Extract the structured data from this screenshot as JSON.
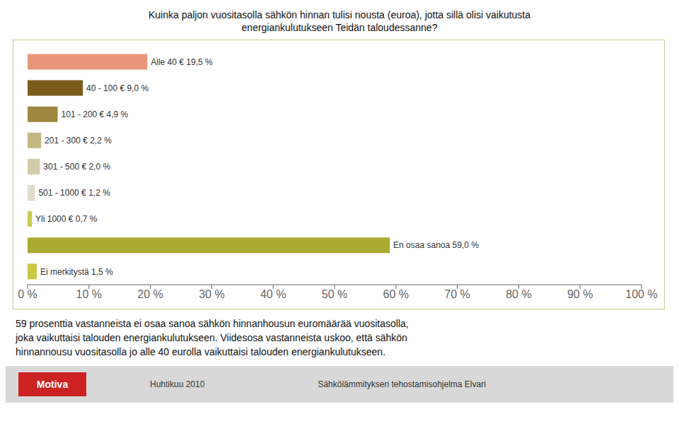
{
  "chart_data": {
    "type": "bar",
    "orientation": "horizontal",
    "title": "Kuinka paljon vuositasolla sähkön hinnan tulisi nousta (euroa), jotta sillä olisi vaikutusta\nenergiankulutukseen Teidän taloudessanne?",
    "categories": [
      "Alle 40 € 19,5 %",
      "40 - 100 € 9,0 %",
      "101 - 200 € 4,9 %",
      "201 - 300 € 2,2 %",
      "301 - 500 € 2,0 %",
      "501 - 1000 € 1,2 %",
      "Yli 1000 € 0,7 %",
      "En osaa sanoa 59,0 %",
      "Ei merkitystä 1,5 %"
    ],
    "values": [
      19.5,
      9.0,
      4.9,
      2.2,
      2.0,
      1.2,
      0.7,
      59.0,
      1.5
    ],
    "colors": [
      "#E8967A",
      "#7B5B1A",
      "#A08840",
      "#C4B882",
      "#D3CCAA",
      "#E0DDCC",
      "#C8CC50",
      "#AAAA30",
      "#C8C845"
    ],
    "xlim": [
      0,
      100
    ],
    "xticks": [
      {
        "value": 0,
        "label": "0 %"
      },
      {
        "value": 10,
        "label": "10 %"
      },
      {
        "value": 20,
        "label": "20 %"
      },
      {
        "value": 30,
        "label": "30 %"
      },
      {
        "value": 40,
        "label": "40 %"
      },
      {
        "value": 50,
        "label": "50 %"
      },
      {
        "value": 60,
        "label": "60 %"
      },
      {
        "value": 70,
        "label": "70 %"
      },
      {
        "value": 80,
        "label": "80 %"
      },
      {
        "value": 90,
        "label": "90 %"
      },
      {
        "value": 100,
        "label": "100 %"
      }
    ],
    "grid": false,
    "tick_labels": "x",
    "annotations": [
      "59 prosenttia vastanneista ei osaa sanoa sähkön hinnanhousun euromäärää vuositasolla,\njoka vaikuttaisi talouden energiankulutukseen. Viidesosa vastanneista uskoo, että sähkön\nhinnannousu vuositasolla jo alle 40 eurolla vaikuttaisi talouden energiankulutukseen.",
      "Motiva",
      "Huhtikuu 2010",
      "Sähkölämmityksen tehostamisohjelma Elvari"
    ]
  }
}
